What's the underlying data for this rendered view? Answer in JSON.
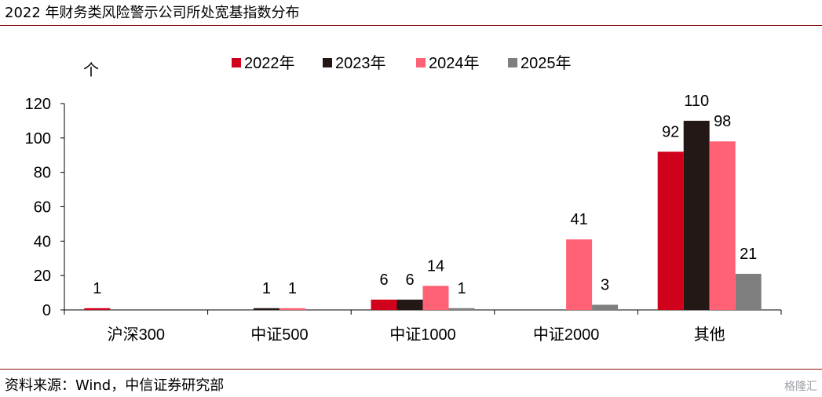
{
  "title": "2022 年财务类风险警示公司所处宽基指数分布",
  "source": "资料来源：Wind，中信证券研究部",
  "watermark": "格隆汇",
  "chart_data": {
    "type": "bar",
    "unit_label": "个",
    "categories": [
      "沪深300",
      "中证500",
      "中证1000",
      "中证2000",
      "其他"
    ],
    "series": [
      {
        "name": "2022年",
        "color": "#d0021b",
        "values": [
          1,
          0,
          6,
          0,
          92
        ],
        "labels": [
          "1",
          "",
          "6",
          "",
          "92"
        ]
      },
      {
        "name": "2023年",
        "color": "#231815",
        "values": [
          0,
          1,
          6,
          0,
          110
        ],
        "labels": [
          "",
          "1",
          "6",
          "",
          "110"
        ]
      },
      {
        "name": "2024年",
        "color": "#ff6274",
        "values": [
          0,
          1,
          14,
          41,
          98
        ],
        "labels": [
          "",
          "1",
          "14",
          "41",
          "98"
        ]
      },
      {
        "name": "2025年",
        "color": "#7f7f7f",
        "values": [
          0,
          0,
          1,
          3,
          21
        ],
        "labels": [
          "",
          "",
          "1",
          "3",
          "21"
        ]
      }
    ],
    "ylim": [
      0,
      120
    ],
    "yticks": [
      0,
      20,
      40,
      60,
      80,
      100,
      120
    ],
    "legend_position": "top-center",
    "grid": false
  }
}
